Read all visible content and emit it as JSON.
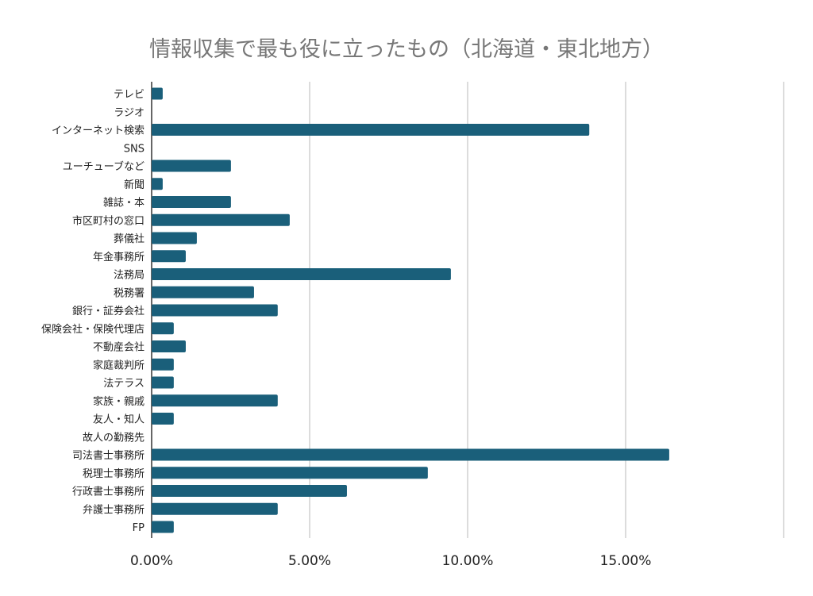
{
  "chart_data": {
    "type": "bar",
    "orientation": "horizontal",
    "title": "情報収集で最も役に立ったもの（北海道・東北地方）",
    "xlabel": "",
    "ylabel": "",
    "xlim": [
      0,
      20
    ],
    "x_ticks": [
      0,
      5,
      10,
      15,
      20
    ],
    "x_tick_labels": [
      "0.00%",
      "5.00%",
      "10.00%",
      "15.00%",
      ""
    ],
    "grid": true,
    "bar_color": "#1a5f7a",
    "categories": [
      "テレビ",
      "ラジオ",
      "インターネット検索",
      "SNS",
      "ユーチューブなど",
      "新聞",
      "雑誌・本",
      "市区町村の窓口",
      "葬儀社",
      "年金事務所",
      "法務局",
      "税務署",
      "銀行・証券会社",
      "保険会社・保険代理店",
      "不動産会社",
      "家庭裁判所",
      "法テラス",
      "家族・親戚",
      "友人・知人",
      "故人の勤務先",
      "司法書士事務所",
      "税理士事務所",
      "行政書士事務所",
      "弁護士事務所",
      "FP"
    ],
    "values": [
      0.35,
      0,
      13.85,
      0,
      2.51,
      0.35,
      2.51,
      4.37,
      1.43,
      1.08,
      9.47,
      3.24,
      3.99,
      0.7,
      1.08,
      0.7,
      0.7,
      3.99,
      0.7,
      0,
      16.38,
      8.74,
      6.18,
      3.99,
      0.7
    ]
  }
}
